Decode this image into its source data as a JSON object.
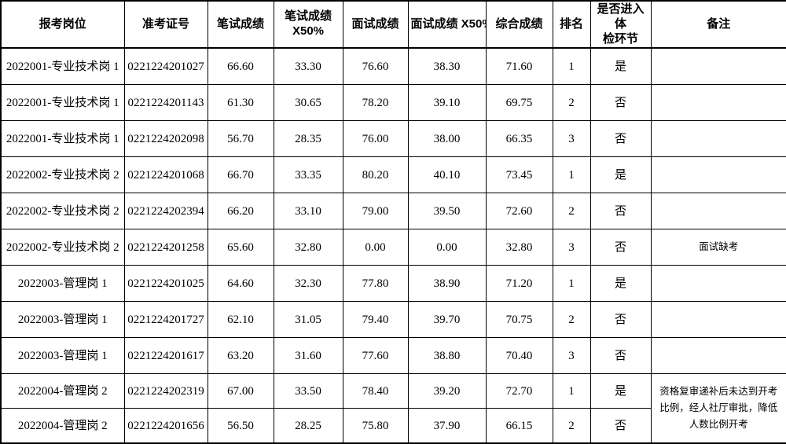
{
  "table": {
    "headers": [
      "报考岗位",
      "准考证号",
      "笔试成绩",
      "笔试成绩\nX50%",
      "面试成绩",
      "面试成绩 X50%",
      "综合成绩",
      "排名",
      "是否进入体\n检环节",
      "备注"
    ],
    "rows": [
      {
        "cells": [
          "2022001-专业技术岗 1",
          "0221224201027",
          "66.60",
          "33.30",
          "76.60",
          "38.30",
          "71.60",
          "1",
          "是",
          ""
        ]
      },
      {
        "cells": [
          "2022001-专业技术岗 1",
          "0221224201143",
          "61.30",
          "30.65",
          "78.20",
          "39.10",
          "69.75",
          "2",
          "否",
          ""
        ]
      },
      {
        "cells": [
          "2022001-专业技术岗 1",
          "0221224202098",
          "56.70",
          "28.35",
          "76.00",
          "38.00",
          "66.35",
          "3",
          "否",
          ""
        ]
      },
      {
        "cells": [
          "2022002-专业技术岗 2",
          "0221224201068",
          "66.70",
          "33.35",
          "80.20",
          "40.10",
          "73.45",
          "1",
          "是",
          ""
        ]
      },
      {
        "cells": [
          "2022002-专业技术岗 2",
          "0221224202394",
          "66.20",
          "33.10",
          "79.00",
          "39.50",
          "72.60",
          "2",
          "否",
          ""
        ]
      },
      {
        "cells": [
          "2022002-专业技术岗 2",
          "0221224201258",
          "65.60",
          "32.80",
          "0.00",
          "0.00",
          "32.80",
          "3",
          "否",
          "面试缺考"
        ]
      },
      {
        "cells": [
          "2022003-管理岗 1",
          "0221224201025",
          "64.60",
          "32.30",
          "77.80",
          "38.90",
          "71.20",
          "1",
          "是",
          ""
        ]
      },
      {
        "cells": [
          "2022003-管理岗 1",
          "0221224201727",
          "62.10",
          "31.05",
          "79.40",
          "39.70",
          "70.75",
          "2",
          "否",
          ""
        ]
      },
      {
        "cells": [
          "2022003-管理岗 1",
          "0221224201617",
          "63.20",
          "31.60",
          "77.60",
          "38.80",
          "70.40",
          "3",
          "否",
          ""
        ]
      },
      {
        "cells": [
          "2022004-管理岗 2",
          "0221224202319",
          "67.00",
          "33.50",
          "78.40",
          "39.20",
          "72.70",
          "1",
          "是",
          "资格复审递补后未达到开考比例，经人社厅审批，降低人数比例开考"
        ],
        "remark_rowspan": 2
      },
      {
        "cells": [
          "2022004-管理岗 2",
          "0221224201656",
          "56.50",
          "28.25",
          "75.80",
          "37.90",
          "66.15",
          "2",
          "否"
        ],
        "remark_merged": true
      }
    ]
  }
}
